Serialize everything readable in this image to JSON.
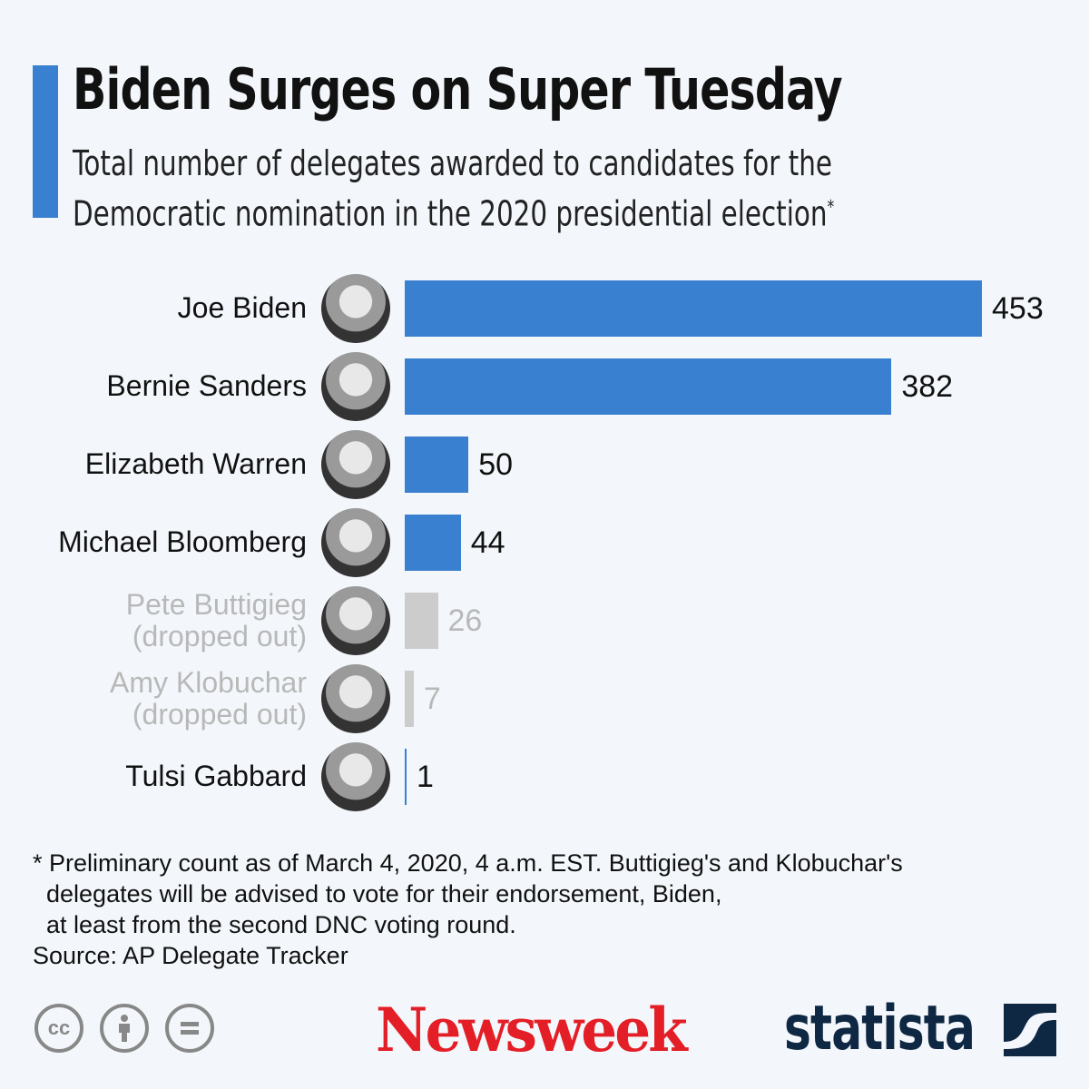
{
  "title": "Biden Surges on Super Tuesday",
  "subtitle_line1": "Total number of delegates awarded to candidates for the",
  "subtitle_line2": "Democratic nomination in the 2020 presidential election",
  "subtitle_mark": "*",
  "colors": {
    "accent": "#3a80d0",
    "active": "#3a80d0",
    "dropped": "#cccccc",
    "label_dropped": "#b8b8b8"
  },
  "chart_data": {
    "type": "bar",
    "orientation": "horizontal",
    "categories": [
      "Joe Biden",
      "Bernie Sanders",
      "Elizabeth Warren",
      "Michael Bloomberg",
      "Pete Buttigieg",
      "Amy Klobuchar",
      "Tulsi Gabbard"
    ],
    "notes": [
      "",
      "",
      "",
      "",
      "(dropped out)",
      "(dropped out)",
      ""
    ],
    "dropped": [
      false,
      false,
      false,
      false,
      true,
      true,
      false
    ],
    "values": [
      453,
      382,
      50,
      44,
      26,
      7,
      1
    ],
    "xlim": [
      0,
      453
    ],
    "grid": false
  },
  "footnote": [
    "* Preliminary count as of March 4, 2020, 4 a.m. EST. Buttigieg's and Klobuchar's",
    "  delegates will be advised to vote for their endorsement, Biden,",
    "  at least from the second DNC voting round."
  ],
  "source": "Source: AP Delegate Tracker",
  "logos": {
    "newsweek": "Newsweek",
    "statista": "statista",
    "cc": "cc"
  }
}
